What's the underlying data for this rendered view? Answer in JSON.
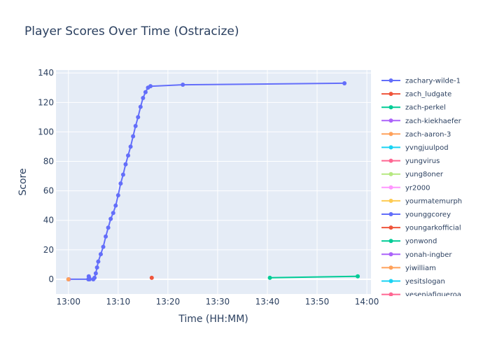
{
  "chart_data": {
    "type": "line",
    "title": "Player Scores Over Time (Ostracize)",
    "xlabel": "Time (HH:MM)",
    "ylabel": "Score",
    "xlim": [
      "12:57:30",
      "14:00:50"
    ],
    "ylim": [
      -10,
      142
    ],
    "x_ticks": [
      "13:00",
      "13:10",
      "13:20",
      "13:30",
      "13:40",
      "13:50",
      "14:00"
    ],
    "y_ticks": [
      0,
      20,
      40,
      60,
      80,
      100,
      120,
      140
    ],
    "grid": true,
    "legend_position": "right",
    "series": [
      {
        "name": "zachary-wilde-1",
        "color": "#636efa",
        "points": [
          [
            "13:00:00",
            0
          ],
          [
            "13:04:00",
            0
          ],
          [
            "13:04:05",
            2
          ],
          [
            "13:04:10",
            1
          ],
          [
            "13:04:15",
            0
          ],
          [
            "13:05:00",
            0
          ],
          [
            "13:05:15",
            1
          ],
          [
            "13:05:30",
            4
          ],
          [
            "13:05:45",
            8
          ],
          [
            "13:06:00",
            12
          ],
          [
            "13:06:30",
            17
          ],
          [
            "13:07:00",
            22
          ],
          [
            "13:07:30",
            29
          ],
          [
            "13:08:00",
            35
          ],
          [
            "13:08:30",
            41
          ],
          [
            "13:09:00",
            45
          ],
          [
            "13:09:30",
            50
          ],
          [
            "13:10:00",
            57
          ],
          [
            "13:10:30",
            65
          ],
          [
            "13:11:00",
            71
          ],
          [
            "13:11:30",
            78
          ],
          [
            "13:12:00",
            84
          ],
          [
            "13:12:30",
            90
          ],
          [
            "13:13:00",
            97
          ],
          [
            "13:13:30",
            104
          ],
          [
            "13:14:00",
            110
          ],
          [
            "13:14:30",
            117
          ],
          [
            "13:15:00",
            123
          ],
          [
            "13:15:30",
            127
          ],
          [
            "13:16:00",
            130
          ],
          [
            "13:16:30",
            131
          ],
          [
            "13:23:00",
            132
          ],
          [
            "13:55:30",
            133
          ]
        ]
      },
      {
        "name": "zach_ludgate",
        "color": "#ef553b",
        "points": [
          [
            "13:16:45",
            1
          ]
        ]
      },
      {
        "name": "zach-perkel",
        "color": "#00cc96",
        "points": [
          [
            "13:40:30",
            1
          ],
          [
            "13:58:10",
            2
          ]
        ]
      },
      {
        "name": "zach-kiekhaefer",
        "color": "#ab63fa",
        "points": [
          [
            "13:00:05",
            0
          ]
        ]
      },
      {
        "name": "zach-aaron-3",
        "color": "#ffa15a",
        "points": [
          [
            "13:00:00",
            0
          ]
        ]
      },
      {
        "name": "yvngjuulpod",
        "color": "#19d3f3",
        "points": []
      },
      {
        "name": "yungvirus",
        "color": "#ff6692",
        "points": []
      },
      {
        "name": "yung8oner",
        "color": "#b6e880",
        "points": []
      },
      {
        "name": "yr2000",
        "color": "#ff97ff",
        "points": []
      },
      {
        "name": "yourmatemurph",
        "color": "#fecb52",
        "points": []
      },
      {
        "name": "younggcorey",
        "color": "#636efa",
        "points": []
      },
      {
        "name": "youngarkofficial",
        "color": "#ef553b",
        "points": []
      },
      {
        "name": "yonwond",
        "color": "#00cc96",
        "points": []
      },
      {
        "name": "yonah-ingber",
        "color": "#ab63fa",
        "points": []
      },
      {
        "name": "yiwilliam",
        "color": "#ffa15a",
        "points": []
      },
      {
        "name": "yesitslogan",
        "color": "#19d3f3",
        "points": []
      },
      {
        "name": "yeseniafigueroa",
        "color": "#ff6692",
        "points": []
      }
    ]
  }
}
